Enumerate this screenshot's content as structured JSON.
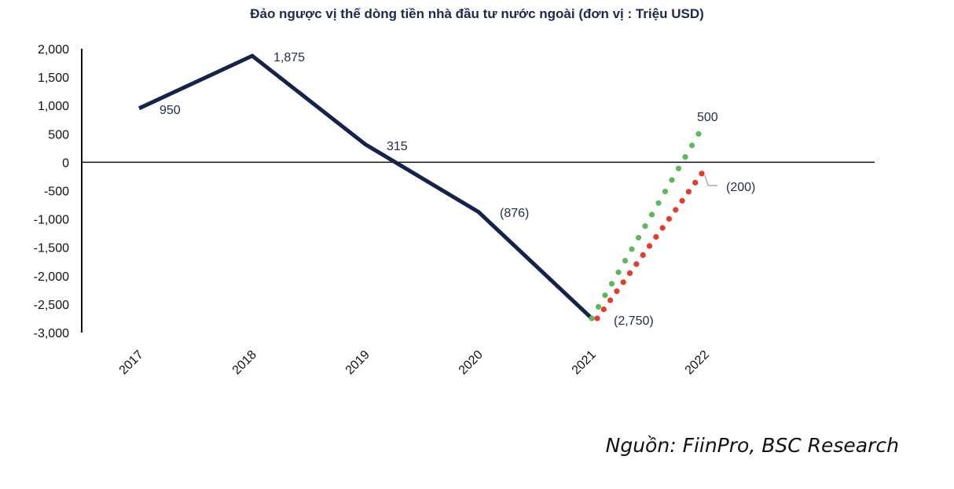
{
  "chart_data": {
    "type": "line",
    "title": "Đảo ngược vị thế dòng tiền nhà đầu tư nước ngoài (đơn vị : Triệu USD)",
    "xlabel": "",
    "ylabel": "",
    "categories": [
      "2017",
      "2018",
      "2019",
      "2020",
      "2021",
      "2022"
    ],
    "ylim": [
      -3000,
      2000
    ],
    "yticks": [
      2000,
      1500,
      1000,
      500,
      0,
      -500,
      -1000,
      -1500,
      -2000,
      -2500,
      -3000
    ],
    "ytick_labels": [
      "2,000",
      "1,500",
      "1,000",
      "500",
      "0",
      "-500",
      "-1,000",
      "-1,500",
      "-2,000",
      "-2,500",
      "-3,000"
    ],
    "grid": false,
    "series": [
      {
        "values": [
          950,
          1875,
          315,
          -876,
          -2750,
          null
        ],
        "labels": [
          "950",
          "1,875",
          "315",
          "(876)",
          "(2,750)",
          ""
        ],
        "color": "#15224a",
        "style": "solid"
      },
      {
        "values": [
          null,
          null,
          null,
          null,
          -2750,
          500
        ],
        "labels": [
          "",
          "",
          "",
          "",
          "",
          "500"
        ],
        "color": "#5cb85c",
        "style": "dotted"
      },
      {
        "values": [
          null,
          null,
          null,
          null,
          -2750,
          -200
        ],
        "labels": [
          "",
          "",
          "",
          "",
          "",
          "(200)"
        ],
        "color": "#e8392a",
        "style": "dotted"
      }
    ]
  },
  "source": "Nguồn: FiinPro, BSC Research"
}
